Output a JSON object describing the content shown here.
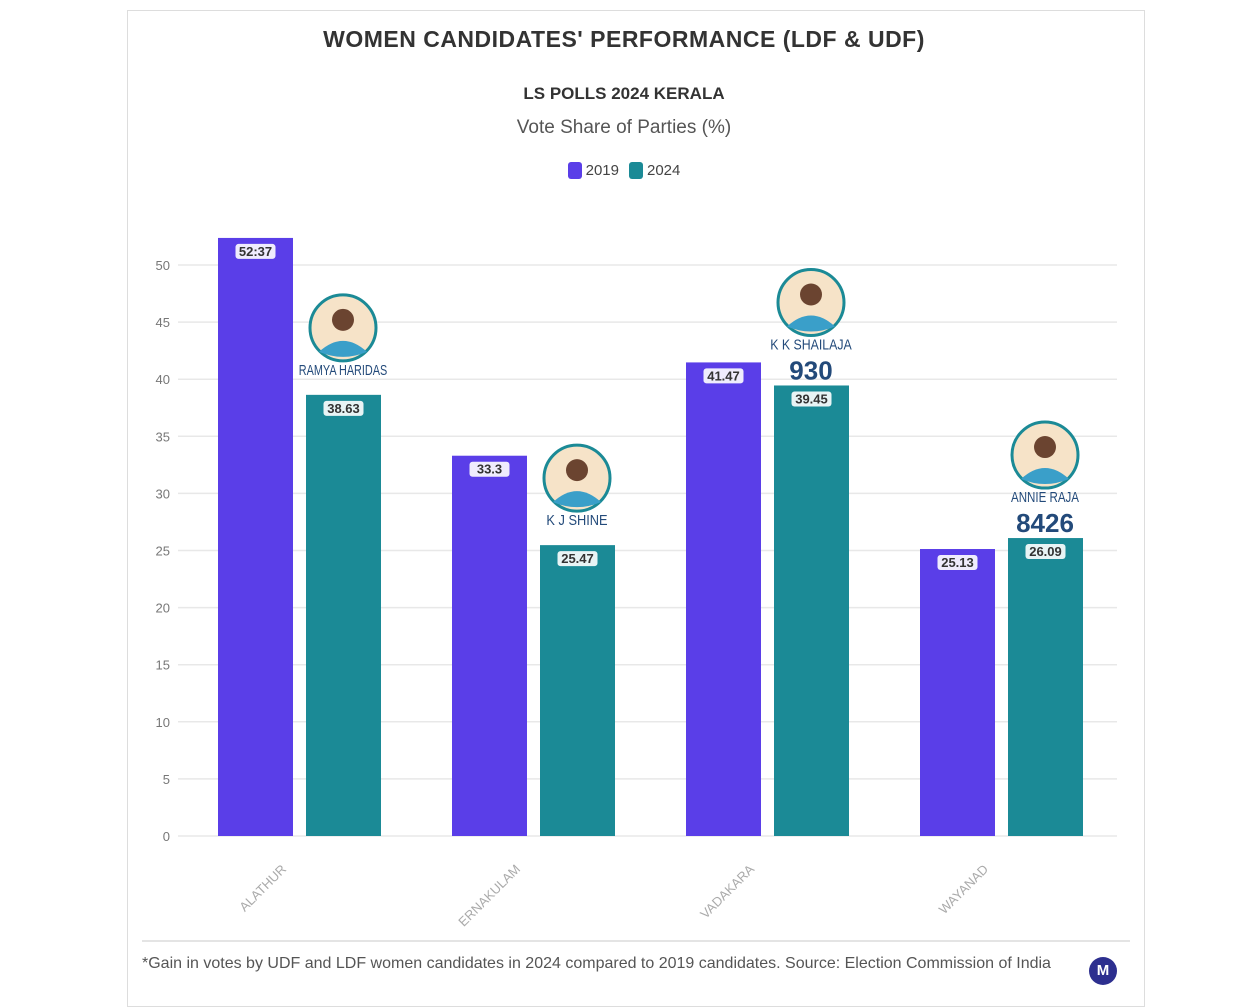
{
  "chart_data": {
    "type": "bar",
    "title": "WOMEN CANDIDATES' PERFORMANCE (LDF & UDF)",
    "subtitle": "LS POLLS 2024 KERALA",
    "ylabel_caption": "Vote Share of Parties (%)",
    "categories": [
      "ALATHUR",
      "ERNAKULAM",
      "VADAKARA",
      "WAYANAD"
    ],
    "series": [
      {
        "name": "2019",
        "color": "#5a3ee8",
        "values": [
          52.37,
          33.3,
          41.47,
          25.13
        ],
        "labels": [
          "52:37",
          "33.3",
          "41.47",
          "25.13"
        ]
      },
      {
        "name": "2024",
        "color": "#1b8a96",
        "values": [
          38.63,
          25.47,
          39.45,
          26.09
        ],
        "labels": [
          "38.63",
          "25.47",
          "39.45",
          "26.09"
        ]
      }
    ],
    "ylim": [
      0,
      50
    ],
    "yticks": [
      "0",
      "5",
      "10",
      "15",
      "20",
      "25",
      "30",
      "35",
      "40",
      "45",
      "50"
    ],
    "grid": true,
    "legend_position": "top-center",
    "annotations": [
      {
        "category": "ALATHUR",
        "name": "RAMYA HARIDAS",
        "gain": ""
      },
      {
        "category": "ERNAKULAM",
        "name": "K J SHINE",
        "gain": ""
      },
      {
        "category": "VADAKARA",
        "name": "K K SHAILAJA",
        "gain": "930"
      },
      {
        "category": "WAYANAD",
        "name": "ANNIE RAJA",
        "gain": "8426"
      }
    ]
  },
  "footnote": "*Gain in votes by UDF and LDF women candidates in 2024 compared to 2019 candidates. Source: Election Commission of India",
  "logo_text": "M"
}
